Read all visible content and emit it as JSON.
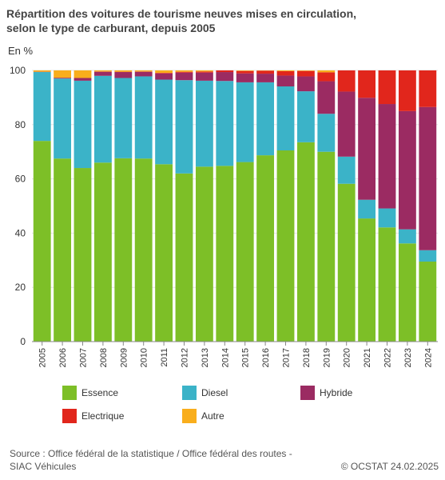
{
  "title_line1": "Répartition des voitures de tourisme neuves mises en circulation,",
  "title_line2": "selon le type de carburant, depuis 2005",
  "unit_label": "En %",
  "source_line1": "Source : Office fédéral de la statistique / Office fédéral des routes -",
  "source_line2": "SIAC Véhicules",
  "credit": "© OCSTAT 24.02.2025",
  "chart_data": {
    "type": "bar",
    "stacked": true,
    "categories": [
      "2005",
      "2006",
      "2007",
      "2008",
      "2009",
      "2010",
      "2011",
      "2012",
      "2013",
      "2014",
      "2015",
      "2016",
      "2017",
      "2018",
      "2019",
      "2020",
      "2021",
      "2022",
      "2023",
      "2024"
    ],
    "series": [
      {
        "name": "Essence",
        "color": "#7dbf27",
        "values": [
          74.0,
          67.5,
          64.0,
          66.0,
          67.6,
          67.5,
          65.4,
          62.0,
          64.5,
          64.8,
          66.2,
          68.7,
          70.5,
          73.5,
          70.0,
          58.2,
          45.4,
          42.1,
          36.2,
          29.5
        ]
      },
      {
        "name": "Diesel",
        "color": "#3bb3c8",
        "values": [
          25.4,
          29.5,
          32.2,
          32.0,
          29.6,
          30.3,
          31.2,
          34.4,
          31.7,
          31.3,
          29.4,
          26.9,
          23.6,
          18.8,
          14.0,
          10.0,
          6.9,
          7.0,
          5.2,
          4.2
        ]
      },
      {
        "name": "Hybride",
        "color": "#9b2b62",
        "values": [
          0.1,
          0.3,
          1.0,
          1.5,
          2.2,
          1.7,
          2.3,
          2.8,
          3.0,
          3.3,
          3.3,
          3.2,
          4.0,
          5.5,
          12.0,
          24.0,
          37.6,
          38.5,
          43.6,
          52.8
        ]
      },
      {
        "name": "Electrique",
        "color": "#e1261c",
        "values": [
          0.0,
          0.0,
          0.0,
          0.1,
          0.1,
          0.1,
          0.2,
          0.3,
          0.4,
          0.6,
          0.9,
          1.1,
          1.6,
          2.0,
          3.3,
          7.8,
          10.1,
          12.4,
          15.0,
          13.5
        ]
      },
      {
        "name": "Autre",
        "color": "#f9ae1c",
        "values": [
          0.5,
          2.7,
          2.8,
          0.4,
          0.5,
          0.4,
          0.9,
          0.5,
          0.4,
          0.0,
          0.2,
          0.1,
          0.3,
          0.2,
          0.7,
          0.0,
          0.0,
          0.0,
          0.0,
          0.0
        ]
      }
    ],
    "ylim": [
      0,
      100
    ],
    "yticks": [
      0,
      20,
      40,
      60,
      80,
      100
    ],
    "grid": true,
    "legend_position": "bottom"
  }
}
